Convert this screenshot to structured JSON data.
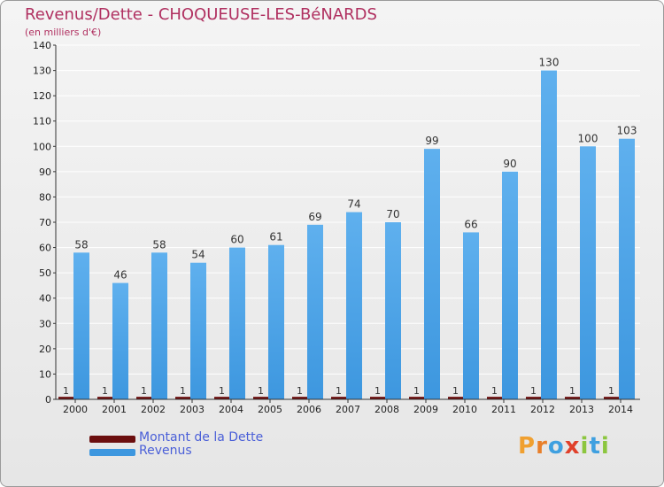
{
  "title": "Revenus/Dette - CHOQUEUSE-LES-BéNARDS",
  "subtitle": "(en milliers d'€)",
  "logo": {
    "text": "Proxiti",
    "letters": [
      {
        "ch": "P",
        "color": "#f0a030"
      },
      {
        "ch": "r",
        "color": "#e87f2a"
      },
      {
        "ch": "o",
        "color": "#3fa0e0"
      },
      {
        "ch": "x",
        "color": "#e0402a"
      },
      {
        "ch": "i",
        "color": "#8cc63f"
      },
      {
        "ch": "t",
        "color": "#3fa0e0"
      },
      {
        "ch": "i",
        "color": "#8cc63f"
      }
    ]
  },
  "colors": {
    "revenus": "#3d97df",
    "revenus_light": "#5fb0ee",
    "dette": "#6b0e0e",
    "axis": "#333333",
    "grid": "#ffffff",
    "title": "#b03060"
  },
  "chart_data": {
    "type": "bar",
    "title": "Revenus/Dette - CHOQUEUSE-LES-BéNARDS",
    "subtitle": "(en milliers d'€)",
    "categories": [
      "2000",
      "2001",
      "2002",
      "2003",
      "2004",
      "2005",
      "2006",
      "2007",
      "2008",
      "2009",
      "2010",
      "2011",
      "2012",
      "2013",
      "2014"
    ],
    "series": [
      {
        "name": "Montant de la Dette",
        "values": [
          1,
          1,
          1,
          1,
          1,
          1,
          1,
          1,
          1,
          1,
          1,
          1,
          1,
          1,
          1
        ]
      },
      {
        "name": "Revenus",
        "values": [
          58,
          46,
          58,
          54,
          60,
          61,
          69,
          74,
          70,
          99,
          66,
          90,
          130,
          100,
          103
        ]
      }
    ],
    "ylim": [
      0,
      140
    ],
    "yticks": [
      0,
      10,
      20,
      30,
      40,
      50,
      60,
      70,
      80,
      90,
      100,
      110,
      120,
      130,
      140
    ],
    "grid": true,
    "legend_position": "bottom-left"
  }
}
